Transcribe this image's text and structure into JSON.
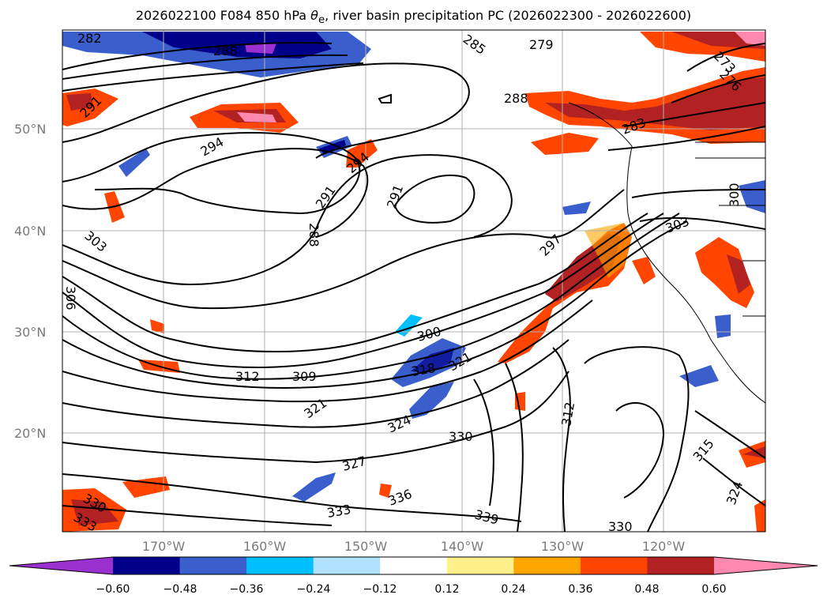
{
  "title_main": "2026022100 F084 850 hPa ",
  "title_theta": "θ",
  "title_sub": "e",
  "title_rest": ", river basin precipitation PC (2026022300 - 2026022600)",
  "lat_ticks": [
    "50°N",
    "40°N",
    "30°N",
    "20°N"
  ],
  "lon_ticks": [
    "170°W",
    "160°W",
    "150°W",
    "140°W",
    "130°W",
    "120°W"
  ],
  "contour_labels": [
    "282",
    "288",
    "294",
    "291",
    "294",
    "291",
    "288",
    "285",
    "279",
    "288",
    "303",
    "306",
    "297",
    "300",
    "309",
    "312",
    "318",
    "321",
    "321",
    "324",
    "327",
    "330",
    "333",
    "336",
    "339",
    "312",
    "315",
    "330",
    "303",
    "300",
    "273",
    "276",
    "283",
    "291",
    "330",
    "333",
    "324"
  ],
  "colorbar": {
    "ticks": [
      "−0.60",
      "−0.48",
      "−0.36",
      "−0.24",
      "−0.12",
      "0.12",
      "0.24",
      "0.36",
      "0.48",
      "0.60"
    ],
    "colors": [
      "#9b30d0",
      "#00008b",
      "#3a5fcd",
      "#00bfff",
      "#b0e2ff",
      "#ffffff",
      "#fff08c",
      "#ffa500",
      "#ff4500",
      "#b22222",
      "#ff88b0"
    ],
    "extend_low_color": "#9b30d0",
    "extend_high_color": "#ff88b0"
  }
}
